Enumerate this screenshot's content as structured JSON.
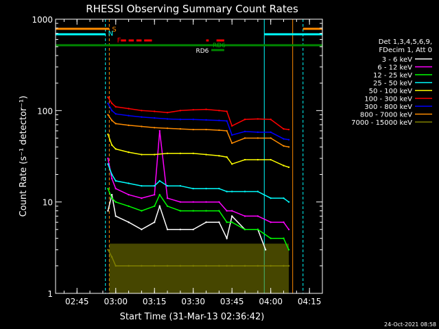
{
  "chart_data": {
    "type": "line",
    "title": "RHESSI Observing Summary Count Rates",
    "xlabel": "Start Time (31-Mar-13 02:36:42)",
    "ylabel": "Count Rate (s⁻¹ detector⁻¹)",
    "y_scale": "log",
    "ylim": [
      1,
      1000
    ],
    "xlim": [
      "02:36:42",
      "04:20:00"
    ],
    "x_ticks": [
      "02:45",
      "03:00",
      "03:15",
      "03:30",
      "03:45",
      "04:00",
      "04:15"
    ],
    "y_ticks": [
      "1",
      "10",
      "100",
      "1000"
    ],
    "grid": false,
    "legend_position": "right",
    "legend_header": [
      "Det 1,3,4,5,6,9,",
      "FDecim 1, Att 0"
    ],
    "timestamp": "24-Oct-2021 08:58",
    "series": [
      {
        "name": "3 - 6 keV",
        "color": "#ffffff",
        "x": [
          "02:57:00",
          "02:58:30",
          "03:00",
          "03:05",
          "03:10",
          "03:15",
          "03:17",
          "03:20",
          "03:25",
          "03:30",
          "03:35",
          "03:40",
          "03:43",
          "03:45",
          "03:50",
          "03:55",
          "03:58"
        ],
        "values": [
          8,
          12,
          7,
          6,
          5,
          6,
          9,
          5,
          5,
          5,
          6,
          6,
          4,
          7,
          5,
          5,
          3
        ]
      },
      {
        "name": "6 - 12 keV",
        "color": "#ff00ff",
        "x": [
          "02:57:00",
          "02:58:30",
          "03:00",
          "03:05",
          "03:10",
          "03:15",
          "03:17",
          "03:20",
          "03:25",
          "03:30",
          "03:35",
          "03:40",
          "03:43",
          "03:45",
          "03:50",
          "03:55",
          "04:00",
          "04:05",
          "04:07"
        ],
        "values": [
          30,
          18,
          14,
          12,
          11,
          12,
          60,
          11,
          10,
          10,
          10,
          10,
          8,
          8,
          7,
          7,
          6,
          6,
          5
        ]
      },
      {
        "name": "12 - 25 keV",
        "color": "#00ff00",
        "x": [
          "02:57:00",
          "02:58:30",
          "03:00",
          "03:05",
          "03:10",
          "03:15",
          "03:17",
          "03:20",
          "03:25",
          "03:30",
          "03:35",
          "03:40",
          "03:43",
          "03:45",
          "03:50",
          "03:55",
          "04:00",
          "04:05",
          "04:07"
        ],
        "values": [
          14,
          11,
          10,
          9,
          8,
          9,
          12,
          9,
          8,
          8,
          8,
          8,
          6,
          6,
          5,
          5,
          4,
          4,
          3
        ]
      },
      {
        "name": "25 - 50 keV",
        "color": "#00ffff",
        "x": [
          "02:57:00",
          "02:58:30",
          "03:00",
          "03:05",
          "03:10",
          "03:15",
          "03:17",
          "03:20",
          "03:25",
          "03:30",
          "03:35",
          "03:40",
          "03:43",
          "03:45",
          "03:50",
          "03:55",
          "04:00",
          "04:05",
          "04:07"
        ],
        "values": [
          26,
          20,
          17,
          16,
          15,
          15,
          17,
          15,
          15,
          14,
          14,
          14,
          13,
          13,
          13,
          13,
          11,
          11,
          10
        ]
      },
      {
        "name": "50 - 100 keV",
        "color": "#ffff00",
        "x": [
          "02:57:00",
          "02:58:30",
          "03:00",
          "03:05",
          "03:10",
          "03:15",
          "03:20",
          "03:25",
          "03:30",
          "03:35",
          "03:40",
          "03:43",
          "03:45",
          "03:50",
          "03:55",
          "04:00",
          "04:05",
          "04:07"
        ],
        "values": [
          55,
          42,
          38,
          35,
          33,
          33,
          34,
          34,
          34,
          33,
          32,
          31,
          26,
          29,
          29,
          29,
          25,
          24
        ]
      },
      {
        "name": "100 - 300 keV",
        "color": "#ff0000",
        "x": [
          "02:57:00",
          "02:58:30",
          "03:00",
          "03:05",
          "03:10",
          "03:15",
          "03:20",
          "03:25",
          "03:30",
          "03:35",
          "03:40",
          "03:43",
          "03:45",
          "03:50",
          "03:55",
          "04:00",
          "04:05",
          "04:07"
        ],
        "values": [
          140,
          120,
          110,
          105,
          100,
          98,
          95,
          100,
          102,
          103,
          100,
          98,
          68,
          80,
          81,
          80,
          63,
          62
        ]
      },
      {
        "name": "300 - 800 keV",
        "color": "#0000ff",
        "x": [
          "02:57:00",
          "02:58:30",
          "03:00",
          "03:05",
          "03:10",
          "03:15",
          "03:20",
          "03:25",
          "03:30",
          "03:35",
          "03:40",
          "03:43",
          "03:45",
          "03:50",
          "03:55",
          "04:00",
          "04:05",
          "04:07"
        ],
        "values": [
          120,
          100,
          92,
          88,
          85,
          83,
          81,
          80,
          80,
          79,
          78,
          77,
          54,
          59,
          58,
          58,
          49,
          48
        ]
      },
      {
        "name": "800 - 7000 keV",
        "color": "#ff8c00",
        "x": [
          "02:57:00",
          "02:58:30",
          "03:00",
          "03:05",
          "03:10",
          "03:15",
          "03:20",
          "03:25",
          "03:30",
          "03:35",
          "03:40",
          "03:43",
          "03:45",
          "03:50",
          "03:55",
          "04:00",
          "04:05",
          "04:07"
        ],
        "values": [
          90,
          78,
          72,
          69,
          67,
          65,
          64,
          63,
          62,
          62,
          61,
          60,
          44,
          50,
          50,
          50,
          41,
          40
        ]
      },
      {
        "name": "7000 - 15000 keV",
        "color": "#808000",
        "x": [
          "02:57:00",
          "02:58:30",
          "03:00",
          "03:05",
          "03:10",
          "03:15",
          "03:20",
          "03:25",
          "03:30",
          "03:35",
          "03:40",
          "03:43",
          "03:45",
          "03:50",
          "03:55",
          "04:00",
          "04:05",
          "04:07"
        ],
        "values": [
          3,
          2.5,
          2,
          2,
          2,
          2,
          2,
          2,
          2,
          2,
          2,
          2,
          2,
          2,
          2,
          2,
          2,
          2
        ]
      }
    ],
    "annotations": [
      {
        "label": "S",
        "color": "#ff8c00"
      },
      {
        "label": "N",
        "color": "#00ffff"
      },
      {
        "label": "F",
        "color": "#ff0000"
      },
      {
        "label": "RD6",
        "color": "#00aa00"
      },
      {
        "label": "RD6",
        "color": "#ffffff"
      }
    ]
  }
}
